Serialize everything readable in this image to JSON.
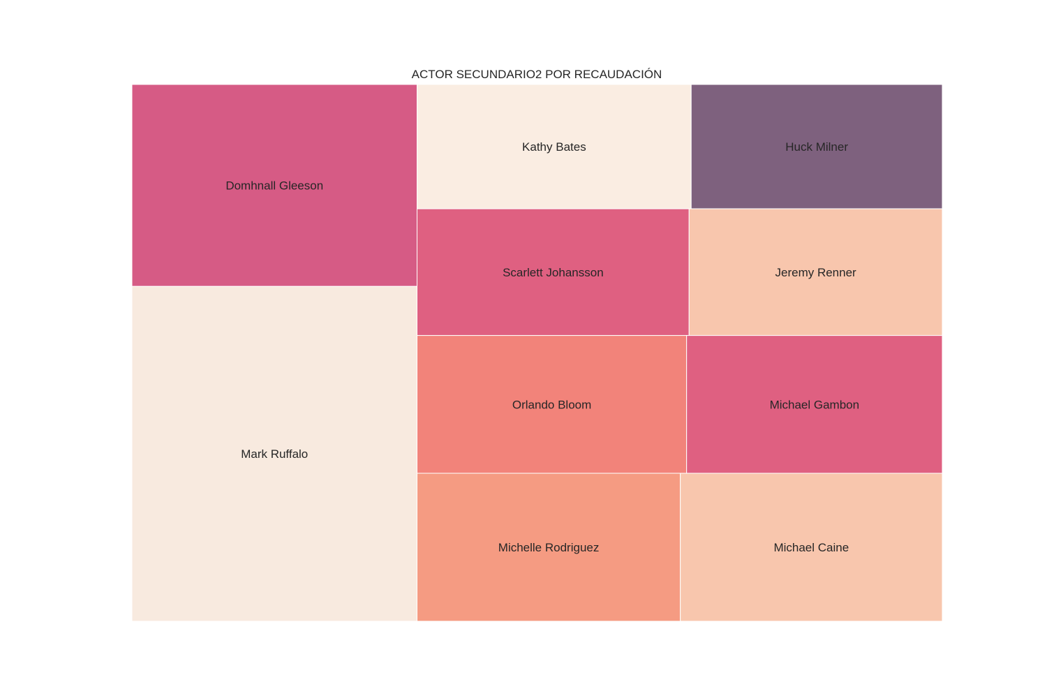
{
  "chart_data": {
    "type": "treemap",
    "title": "ACTOR SECUNDARIO2 POR RECAUDACIÓN",
    "series": [
      {
        "name": "Mark Ruffalo",
        "value": 1.0,
        "color": "#f8eadf"
      },
      {
        "name": "Domhnall Gleeson",
        "value": 0.603,
        "color": "#d65b85"
      },
      {
        "name": "Kathy Bates",
        "value": 0.357,
        "color": "#faede2"
      },
      {
        "name": "Scarlett Johansson",
        "value": 0.361,
        "color": "#df6081"
      },
      {
        "name": "Orlando Bloom",
        "value": 0.389,
        "color": "#f2837a"
      },
      {
        "name": "Michelle Rodriguez",
        "value": 0.408,
        "color": "#f59b82"
      },
      {
        "name": "Huck Milner",
        "value": 0.327,
        "color": "#7e617e"
      },
      {
        "name": "Jeremy Renner",
        "value": 0.336,
        "color": "#f8c6ad"
      },
      {
        "name": "Michael Gambon",
        "value": 0.369,
        "color": "#df6081"
      },
      {
        "name": "Michael Caine",
        "value": 0.406,
        "color": "#f8c6ad"
      }
    ]
  }
}
